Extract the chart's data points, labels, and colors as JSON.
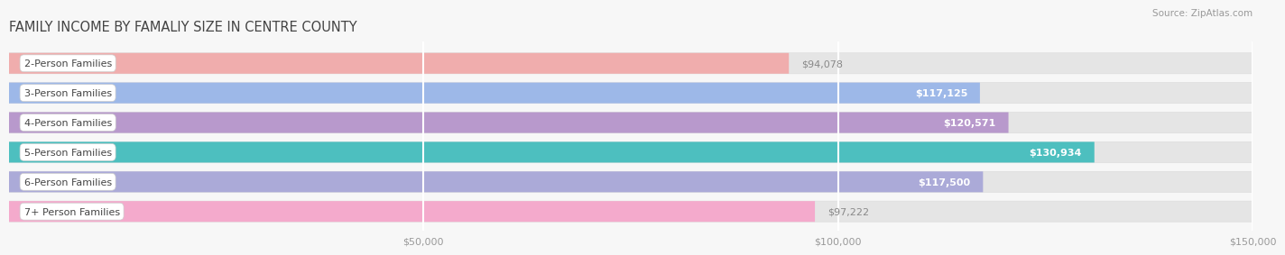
{
  "title": "FAMILY INCOME BY FAMALIY SIZE IN CENTRE COUNTY",
  "source": "Source: ZipAtlas.com",
  "categories": [
    "2-Person Families",
    "3-Person Families",
    "4-Person Families",
    "5-Person Families",
    "6-Person Families",
    "7+ Person Families"
  ],
  "values": [
    94078,
    117125,
    120571,
    130934,
    117500,
    97222
  ],
  "labels": [
    "$94,078",
    "$117,125",
    "$120,571",
    "$130,934",
    "$117,500",
    "$97,222"
  ],
  "bar_colors": [
    "#F0ADAD",
    "#9DB8E8",
    "#B899CC",
    "#4DBFBF",
    "#ABAAD8",
    "#F4AACC"
  ],
  "bar_bg_color": "#E5E5E5",
  "background_color": "#F7F7F7",
  "xlim": [
    0,
    150000
  ],
  "xticks": [
    50000,
    100000,
    150000
  ],
  "xticklabels": [
    "$50,000",
    "$100,000",
    "$150,000"
  ],
  "title_fontsize": 10.5,
  "source_fontsize": 7.5,
  "label_fontsize": 8,
  "category_fontsize": 8,
  "bar_height": 0.7,
  "grid_color": "#FFFFFF",
  "label_color_inside": "#FFFFFF",
  "label_color_outside": "#888888",
  "label_threshold": 110000
}
